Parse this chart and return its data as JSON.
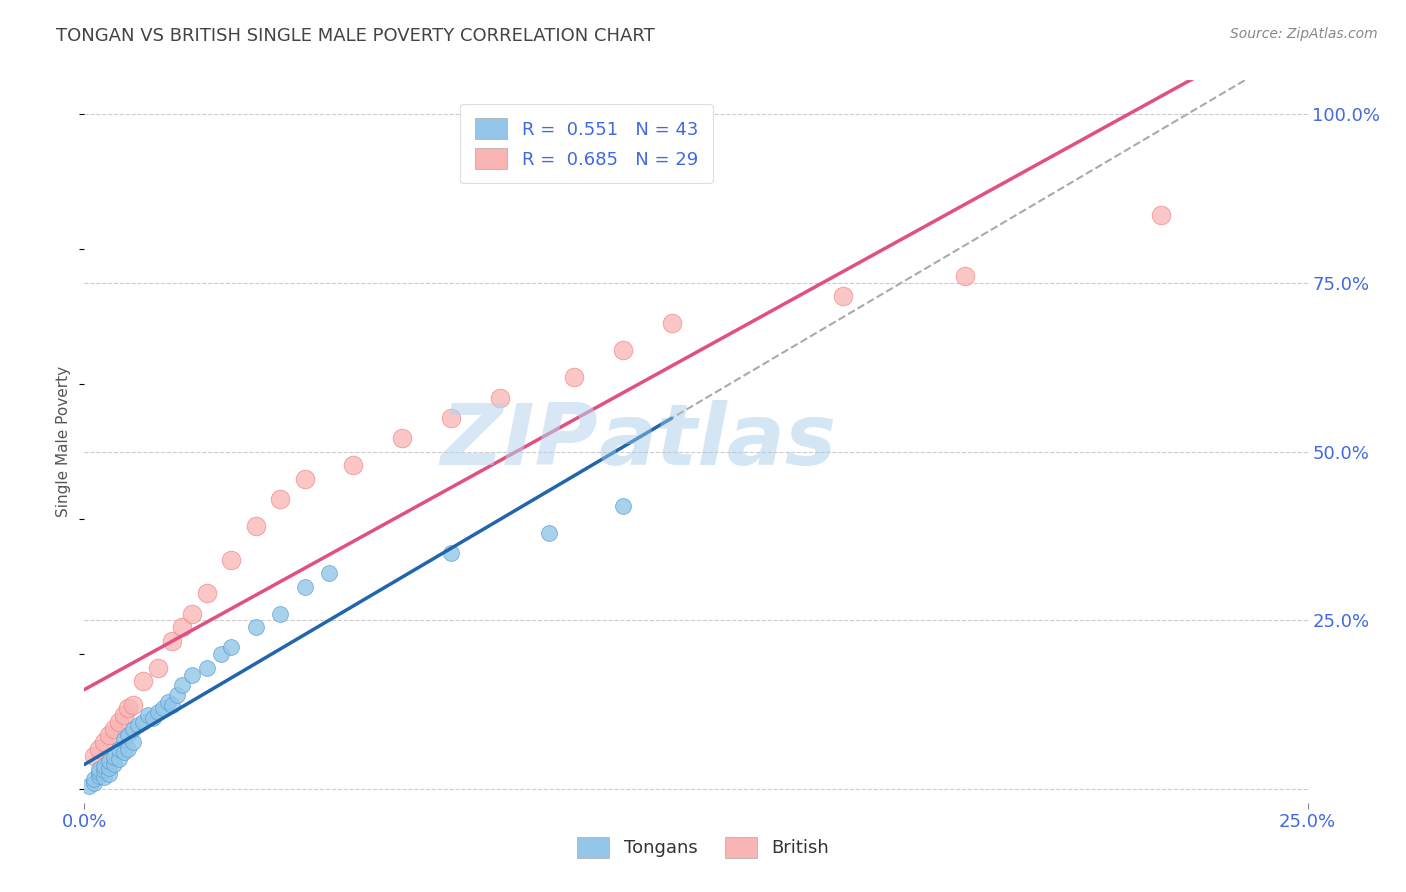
{
  "title": "TONGAN VS BRITISH SINGLE MALE POVERTY CORRELATION CHART",
  "source_text": "Source: ZipAtlas.com",
  "ylabel": "Single Male Poverty",
  "watermark_zip": "ZIP",
  "watermark_atlas": "atlas",
  "xmin": 0.0,
  "xmax": 0.25,
  "ymin": -0.02,
  "ymax": 1.05,
  "yticks": [
    0.0,
    0.25,
    0.5,
    0.75,
    1.0
  ],
  "ytick_labels": [
    "",
    "25.0%",
    "50.0%",
    "75.0%",
    "100.0%"
  ],
  "xticks": [
    0.0,
    0.25
  ],
  "xtick_labels": [
    "0.0%",
    "25.0%"
  ],
  "legend_entry1": "R =  0.551   N = 43",
  "legend_entry2": "R =  0.685   N = 29",
  "tongan_color": "#93c6e8",
  "british_color": "#f9b4b4",
  "tongan_edge": "#5b9fd4",
  "british_edge": "#f08080",
  "reg_tongan_color": "#2166ac",
  "reg_british_color": "#e05080",
  "dash_color": "#aaaaaa",
  "grid_color": "#cccccc",
  "title_color": "#444444",
  "axis_label_color": "#555555",
  "tick_label_color": "#4169E1",
  "background_color": "#ffffff",
  "tongan_x": [
    0.001,
    0.002,
    0.002,
    0.003,
    0.003,
    0.003,
    0.004,
    0.004,
    0.004,
    0.005,
    0.005,
    0.005,
    0.006,
    0.006,
    0.007,
    0.007,
    0.008,
    0.008,
    0.009,
    0.009,
    0.01,
    0.01,
    0.011,
    0.012,
    0.013,
    0.014,
    0.015,
    0.016,
    0.017,
    0.018,
    0.019,
    0.02,
    0.022,
    0.025,
    0.028,
    0.03,
    0.035,
    0.04,
    0.045,
    0.05,
    0.075,
    0.095,
    0.11
  ],
  "tongan_y": [
    0.005,
    0.01,
    0.015,
    0.02,
    0.025,
    0.03,
    0.018,
    0.028,
    0.035,
    0.022,
    0.032,
    0.042,
    0.038,
    0.048,
    0.045,
    0.06,
    0.055,
    0.075,
    0.06,
    0.08,
    0.07,
    0.09,
    0.095,
    0.1,
    0.11,
    0.105,
    0.115,
    0.12,
    0.13,
    0.125,
    0.14,
    0.155,
    0.17,
    0.18,
    0.2,
    0.21,
    0.24,
    0.26,
    0.3,
    0.32,
    0.35,
    0.38,
    0.42
  ],
  "british_x": [
    0.002,
    0.003,
    0.004,
    0.005,
    0.006,
    0.007,
    0.008,
    0.009,
    0.01,
    0.012,
    0.015,
    0.018,
    0.02,
    0.022,
    0.025,
    0.03,
    0.035,
    0.04,
    0.045,
    0.055,
    0.065,
    0.075,
    0.085,
    0.1,
    0.11,
    0.12,
    0.155,
    0.18,
    0.22
  ],
  "british_y": [
    0.05,
    0.06,
    0.07,
    0.08,
    0.09,
    0.1,
    0.11,
    0.12,
    0.125,
    0.16,
    0.18,
    0.22,
    0.24,
    0.26,
    0.29,
    0.34,
    0.39,
    0.43,
    0.46,
    0.48,
    0.52,
    0.55,
    0.58,
    0.61,
    0.65,
    0.69,
    0.73,
    0.76,
    0.85
  ],
  "figsize": [
    14.06,
    8.92
  ],
  "dpi": 100
}
